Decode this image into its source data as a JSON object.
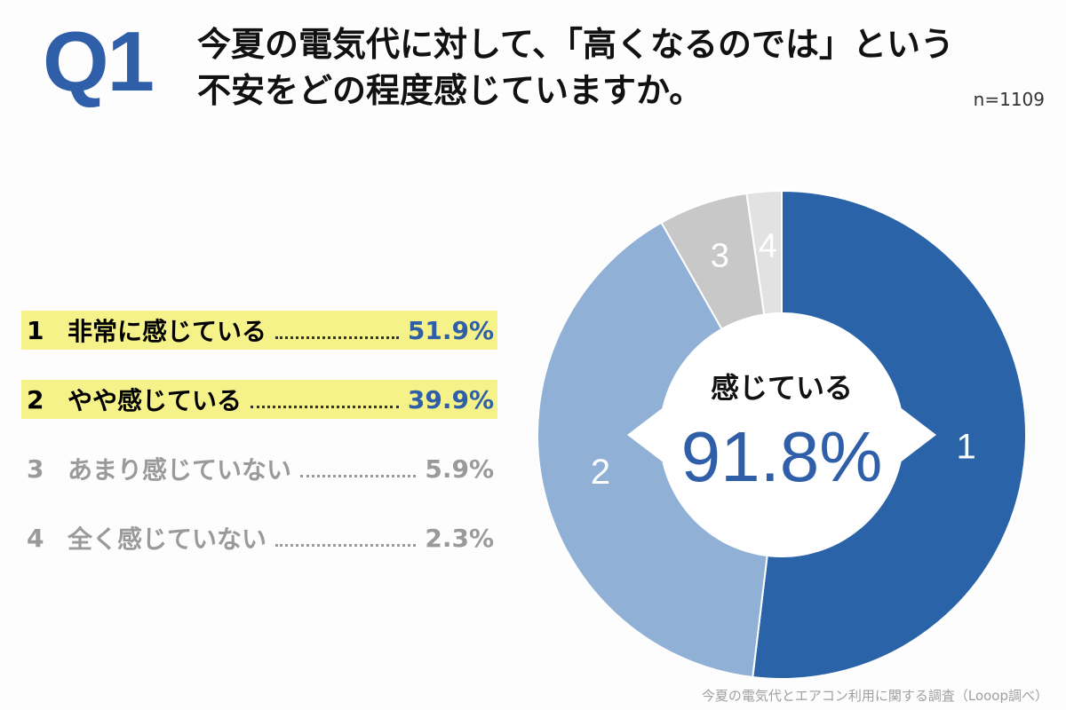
{
  "header": {
    "q_label": "Q1",
    "title_line1": "今夏の電気代に対して、「高くなるのでは」という",
    "title_line2": "不安をどの程度感じていますか。",
    "n_label": "n=1109"
  },
  "legend": [
    {
      "num": "1",
      "label": "非常に感じている",
      "pct": "51.9%"
    },
    {
      "num": "2",
      "label": "やや感じている",
      "pct": "39.9%"
    },
    {
      "num": "3",
      "label": "あまり感じていない",
      "pct": "5.9%"
    },
    {
      "num": "4",
      "label": "全く感じていない",
      "pct": "2.3%"
    }
  ],
  "chart_data": {
    "type": "pie",
    "categories": [
      "1",
      "2",
      "3",
      "4"
    ],
    "values": [
      51.9,
      39.9,
      5.9,
      2.3
    ],
    "colors": [
      "#2a63a8",
      "#90b0d6",
      "#c8c8c8",
      "#e2e2e2"
    ],
    "center_label": "感じている",
    "center_value": "91.8%"
  },
  "footer": {
    "source": "今夏の電気代とエアコン利用に関する調査（Looop調べ）"
  }
}
